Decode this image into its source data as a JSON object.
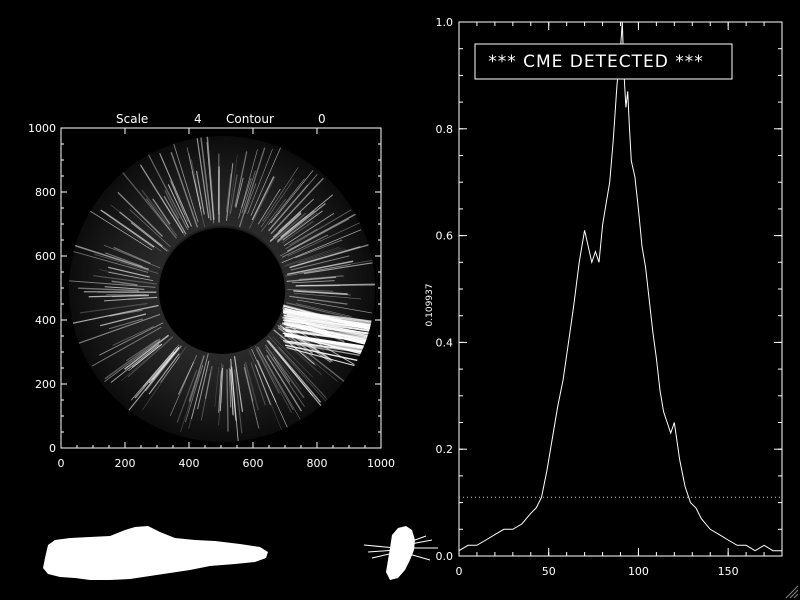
{
  "colors": {
    "background": "#000000",
    "foreground": "#ffffff",
    "threshold_line": "#dddddd"
  },
  "left_panel": {
    "header": {
      "scale_label": "Scale",
      "scale_value": "4",
      "contour_label": "Contour",
      "contour_value": "0"
    },
    "x_ticks": [
      "0",
      "200",
      "400",
      "600",
      "800",
      "1000"
    ],
    "y_ticks": [
      "0",
      "200",
      "400",
      "600",
      "800",
      "1000"
    ],
    "axis_range": [
      0,
      1000
    ],
    "image": "coronagraph-occulted-disk"
  },
  "banner": "*** CME DETECTED ***",
  "resize_icon": "resize-grip-icon",
  "chart_data": {
    "type": "line",
    "title": "",
    "xlabel": "",
    "ylabel": "0.109937",
    "xlim": [
      0,
      180
    ],
    "ylim": [
      0,
      1.0
    ],
    "x_ticks": [
      "0",
      "50",
      "100",
      "150"
    ],
    "y_ticks": [
      "0.0",
      "0.2",
      "0.4",
      "0.6",
      "0.8",
      "1.0"
    ],
    "threshold": 0.109937,
    "series": [
      {
        "name": "",
        "x": [
          0,
          5,
          10,
          15,
          20,
          25,
          30,
          35,
          40,
          43,
          46,
          49,
          52,
          55,
          58,
          61,
          64,
          67,
          70,
          72,
          74,
          76,
          78,
          80,
          82,
          84,
          86,
          88,
          90,
          91,
          92,
          93,
          94,
          95,
          96,
          98,
          100,
          102,
          104,
          106,
          108,
          110,
          112,
          114,
          116,
          118,
          120,
          123,
          126,
          129,
          132,
          135,
          140,
          145,
          150,
          155,
          160,
          165,
          170,
          175,
          180
        ],
        "y": [
          0.01,
          0.02,
          0.02,
          0.03,
          0.04,
          0.05,
          0.05,
          0.06,
          0.08,
          0.09,
          0.11,
          0.16,
          0.22,
          0.28,
          0.33,
          0.4,
          0.47,
          0.55,
          0.61,
          0.58,
          0.55,
          0.57,
          0.55,
          0.62,
          0.66,
          0.7,
          0.78,
          0.88,
          0.95,
          1.0,
          0.9,
          0.84,
          0.87,
          0.8,
          0.74,
          0.71,
          0.65,
          0.58,
          0.54,
          0.48,
          0.42,
          0.37,
          0.31,
          0.27,
          0.25,
          0.23,
          0.25,
          0.18,
          0.13,
          0.1,
          0.09,
          0.07,
          0.05,
          0.04,
          0.03,
          0.02,
          0.02,
          0.01,
          0.02,
          0.01,
          0.01
        ]
      }
    ]
  }
}
